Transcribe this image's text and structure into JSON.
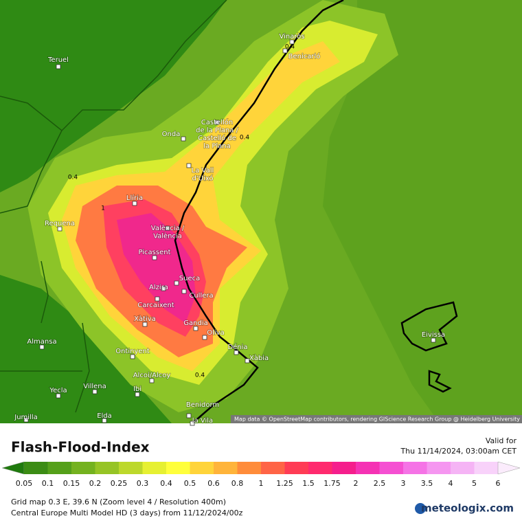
{
  "map": {
    "cities": [
      {
        "lines": [
          "Teruel"
        ]
      },
      {
        "lines": [
          "Vinaròs"
        ]
      },
      {
        "lines": [
          "Benicarló"
        ]
      },
      {
        "lines": [
          "Castellón",
          "de la Plana /",
          "Castelló de",
          "la Plana"
        ]
      },
      {
        "lines": [
          "Onda"
        ]
      },
      {
        "lines": [
          "La Vall",
          "d'Uixó"
        ]
      },
      {
        "lines": [
          "Llíria"
        ]
      },
      {
        "lines": [
          "Requena"
        ]
      },
      {
        "lines": [
          "València /",
          "València"
        ]
      },
      {
        "lines": [
          "Picassent"
        ]
      },
      {
        "lines": [
          "Sueca"
        ]
      },
      {
        "lines": [
          "Alzira"
        ]
      },
      {
        "lines": [
          "Cullera"
        ]
      },
      {
        "lines": [
          "Carcaixent"
        ]
      },
      {
        "lines": [
          "Xàtiva"
        ]
      },
      {
        "lines": [
          "Gandia"
        ]
      },
      {
        "lines": [
          "Oliva"
        ]
      },
      {
        "lines": [
          "Dénia"
        ]
      },
      {
        "lines": [
          "Xàbia"
        ]
      },
      {
        "lines": [
          "Almansa"
        ]
      },
      {
        "lines": [
          "Ontinyent"
        ]
      },
      {
        "lines": [
          "Alcoi/Alcoy"
        ]
      },
      {
        "lines": [
          "Villena"
        ]
      },
      {
        "lines": [
          "Ibi"
        ]
      },
      {
        "lines": [
          "Yecla"
        ]
      },
      {
        "lines": [
          "Jumilla"
        ]
      },
      {
        "lines": [
          "Benidorm"
        ]
      },
      {
        "lines": [
          "Elda"
        ]
      },
      {
        "lines": [
          "la Vila"
        ]
      },
      {
        "lines": [
          "Eivissa"
        ]
      }
    ],
    "contour_labels": [
      "0.4",
      "0.4",
      "0.4",
      "0.4",
      "1"
    ],
    "attribution": "Map data © OpenStreetMap contributors, rendering GIScience Research Group @ Heidelberg University"
  },
  "legend": {
    "title": "Flash-Flood-Index",
    "valid_for": "Valid for",
    "valid_time": "Thu 11/14/2024, 03:00am CET",
    "ticks": [
      "0.05",
      "0.1",
      "0.15",
      "0.2",
      "0.25",
      "0.3",
      "0.4",
      "0.5",
      "0.6",
      "0.8",
      "1",
      "1.25",
      "1.5",
      "1.75",
      "2",
      "2.5",
      "3",
      "3.5",
      "4",
      "5",
      "6"
    ],
    "colors": [
      "#1f7a0d",
      "#3b8c14",
      "#55a01a",
      "#74b21f",
      "#96c425",
      "#bcd82b",
      "#e6f032",
      "#ffff3c",
      "#ffd43a",
      "#ffb43a",
      "#ff8c3a",
      "#ff6446",
      "#ff3c55",
      "#ff2a6e",
      "#f51e8c",
      "#f532b4",
      "#f550d2",
      "#f573e6",
      "#f596f0",
      "#f5b4f5",
      "#f8d2fa",
      "#fbecfc"
    ]
  },
  "footer": {
    "grid": "Grid map 0.3 E, 39.6 N (Zoom level 4 / Resolution 400m)",
    "model": "Central Europe Multi Model HD (3 days) from 11/12/2024/00z",
    "logo": "meteologix.com"
  }
}
